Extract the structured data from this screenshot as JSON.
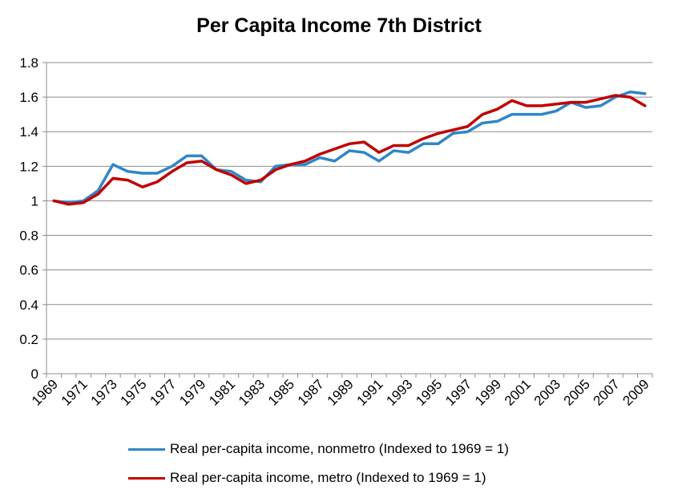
{
  "chart_data": {
    "type": "line",
    "title": "Per Capita Income 7th District",
    "xlabel": "",
    "ylabel": "",
    "ylim": [
      0,
      1.8
    ],
    "yticks": [
      "0",
      "0.2",
      "0.4",
      "0.6",
      "0.8",
      "1",
      "1.2",
      "1.4",
      "1.6",
      "1.8"
    ],
    "xticks": [
      "1969",
      "1971",
      "1973",
      "1975",
      "1977",
      "1979",
      "1981",
      "1983",
      "1985",
      "1987",
      "1989",
      "1991",
      "1993",
      "1995",
      "1997",
      "1999",
      "2001",
      "2003",
      "2005",
      "2007",
      "2009"
    ],
    "grid": true,
    "legend": "bottom",
    "x": [
      1969,
      1970,
      1971,
      1972,
      1973,
      1974,
      1975,
      1976,
      1977,
      1978,
      1979,
      1980,
      1981,
      1982,
      1983,
      1984,
      1985,
      1986,
      1987,
      1988,
      1989,
      1990,
      1991,
      1992,
      1993,
      1994,
      1995,
      1996,
      1997,
      1998,
      1999,
      2000,
      2001,
      2002,
      2003,
      2004,
      2005,
      2006,
      2007,
      2008,
      2009
    ],
    "series": [
      {
        "name": "Real per-capita income, nonmetro (Indexed to 1969 = 1)",
        "color": "#2E86C8",
        "values": [
          1.0,
          0.99,
          1.0,
          1.06,
          1.21,
          1.17,
          1.16,
          1.16,
          1.2,
          1.26,
          1.26,
          1.18,
          1.17,
          1.12,
          1.11,
          1.2,
          1.21,
          1.21,
          1.25,
          1.23,
          1.29,
          1.28,
          1.23,
          1.29,
          1.28,
          1.33,
          1.33,
          1.39,
          1.4,
          1.45,
          1.46,
          1.5,
          1.5,
          1.5,
          1.52,
          1.57,
          1.54,
          1.55,
          1.6,
          1.63,
          1.62
        ]
      },
      {
        "name": "Real per-capita income, metro (Indexed to 1969 = 1)",
        "color": "#C00000",
        "values": [
          1.0,
          0.98,
          0.99,
          1.04,
          1.13,
          1.12,
          1.08,
          1.11,
          1.17,
          1.22,
          1.23,
          1.18,
          1.15,
          1.1,
          1.12,
          1.18,
          1.21,
          1.23,
          1.27,
          1.3,
          1.33,
          1.34,
          1.28,
          1.32,
          1.32,
          1.36,
          1.39,
          1.41,
          1.43,
          1.5,
          1.53,
          1.58,
          1.55,
          1.55,
          1.56,
          1.57,
          1.57,
          1.59,
          1.61,
          1.6,
          1.55
        ]
      }
    ]
  }
}
